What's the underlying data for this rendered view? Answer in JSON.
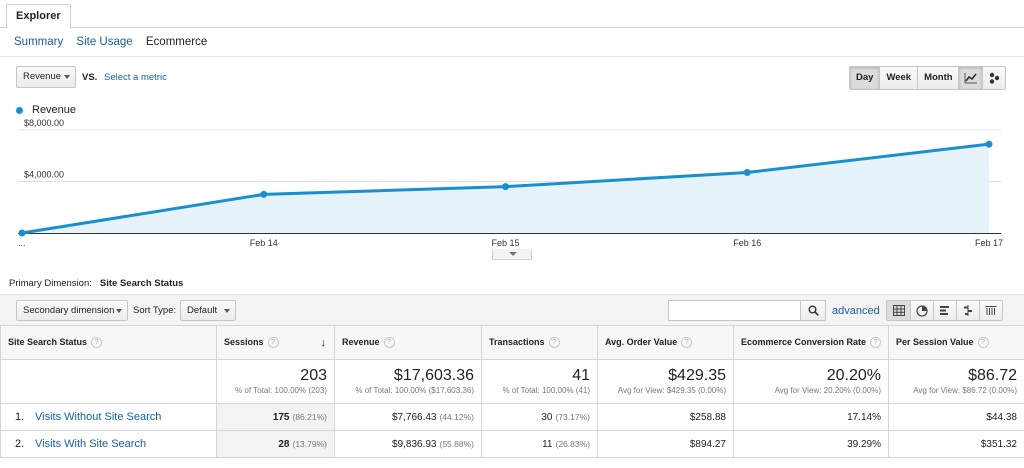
{
  "tabs": {
    "active": "Explorer"
  },
  "subnav": {
    "items": [
      "Summary",
      "Site Usage",
      "Ecommerce"
    ]
  },
  "metric": {
    "selected": "Revenue",
    "vs": "VS.",
    "select_metric": "Select a metric"
  },
  "period": {
    "buttons": [
      "Day",
      "Week",
      "Month"
    ],
    "active": "Day"
  },
  "chart_type_buttons": [
    "line-chart-icon",
    "motion-chart-icon"
  ],
  "colors": {
    "series": "#1a8fd0",
    "area": "#e6f3fa",
    "link": "#1a5fa0"
  },
  "chart_data": {
    "type": "area",
    "series": [
      {
        "name": "Revenue",
        "x": [
          "...",
          "Feb 14",
          "Feb 15",
          "Feb 16",
          "Feb 17"
        ],
        "values": [
          0,
          3000,
          3600,
          4700,
          6900
        ]
      }
    ],
    "y_ticks": [
      "$8,000.00",
      "$4,000.00"
    ],
    "y_tick_values": [
      8000,
      4000
    ],
    "x_ticks": [
      "...",
      "Feb 14",
      "Feb 15",
      "Feb 16",
      "Feb 17"
    ],
    "ylim": [
      0,
      8000
    ],
    "legend": "top-left",
    "grid": true
  },
  "primary_dimension": {
    "label": "Primary Dimension:",
    "value": "Site Search Status"
  },
  "toolbar": {
    "secondary_dimension": "Secondary dimension",
    "sort_type_label": "Sort Type:",
    "sort_type": "Default",
    "search_placeholder": "",
    "advanced": "advanced"
  },
  "table": {
    "headers": [
      "Site Search Status",
      "Sessions",
      "Revenue",
      "Transactions",
      "Avg. Order Value",
      "Ecommerce Conversion Rate",
      "Per Session Value"
    ],
    "totals": [
      {
        "value": "203",
        "sub": "% of Total: 100.00% (203)"
      },
      {
        "value": "$17,603.36",
        "sub": "% of Total: 100.00% ($17,603.36)"
      },
      {
        "value": "41",
        "sub": "% of Total: 100.00% (41)"
      },
      {
        "value": "$429.35",
        "sub": "Avg for View: $429.35 (0.00%)"
      },
      {
        "value": "20.20%",
        "sub": "Avg for View: 20.20% (0.00%)"
      },
      {
        "value": "$86.72",
        "sub": "Avg for View: $86.72 (0.00%)"
      }
    ],
    "rows": [
      {
        "num": "1.",
        "name": "Visits Without Site Search",
        "sessions": "175",
        "sessions_pct": "(86.21%)",
        "revenue": "$7,766.43",
        "revenue_pct": "(44.12%)",
        "transactions": "30",
        "transactions_pct": "(73.17%)",
        "aov": "$258.88",
        "conv": "17.14%",
        "psv": "$44.38"
      },
      {
        "num": "2.",
        "name": "Visits With Site Search",
        "sessions": "28",
        "sessions_pct": "(13.79%)",
        "revenue": "$9,836.93",
        "revenue_pct": "(55.88%)",
        "transactions": "11",
        "transactions_pct": "(26.83%)",
        "aov": "$894.27",
        "conv": "39.29%",
        "psv": "$351.32"
      }
    ]
  }
}
